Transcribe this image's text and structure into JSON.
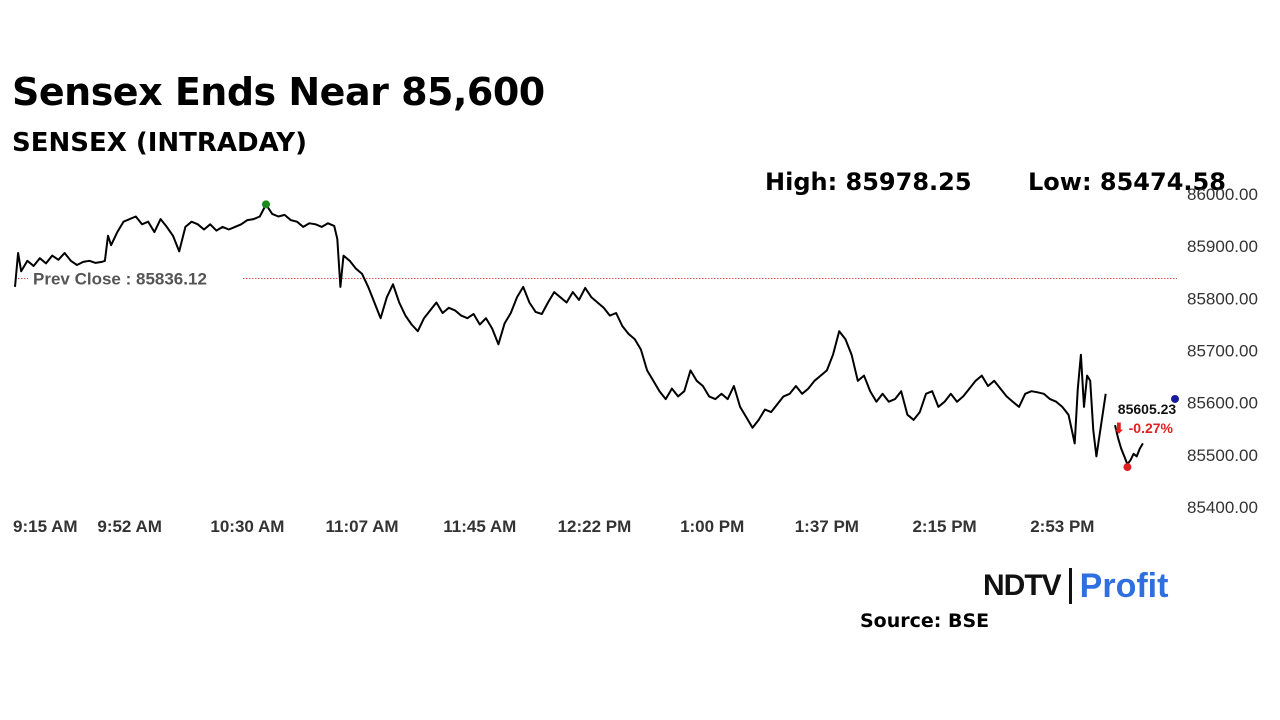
{
  "title": "Sensex Ends Near 85,600",
  "subtitle": "SENSEX (INTRADAY)",
  "high_label": "High: 85978.25",
  "low_label": "Low: 85474.58",
  "source": "Source: BSE",
  "brand": {
    "part1": "NDTV",
    "part2": "Profit"
  },
  "colors": {
    "line": "#000000",
    "prev_close_line": "#d9534f",
    "high_marker": "#1a8a1a",
    "low_marker": "#e02020",
    "last_marker": "#1a1aa0",
    "change_down": "#e02020",
    "brand_profit": "#2f6fe0"
  },
  "chart_data": {
    "type": "line",
    "title": "SENSEX (INTRADAY)",
    "xlabel": "",
    "ylabel": "",
    "ylim": [
      85400,
      86000
    ],
    "y_ticks": [
      86000,
      85900,
      85800,
      85700,
      85600,
      85500,
      85400
    ],
    "y_tick_labels": [
      "86000.00",
      "85900.00",
      "85800.00",
      "85700.00",
      "85600.00",
      "85500.00",
      "85400.00"
    ],
    "x_range": [
      "09:15",
      "15:30"
    ],
    "x_ticks": [
      "09:15",
      "09:52",
      "10:30",
      "11:07",
      "11:45",
      "12:22",
      "13:00",
      "13:37",
      "14:15",
      "14:53"
    ],
    "x_tick_labels": [
      "9:15 AM",
      "9:52 AM",
      "10:30 AM",
      "11:07 AM",
      "11:45 AM",
      "12:22 PM",
      "1:00 PM",
      "1:37 PM",
      "2:15 PM",
      "2:53 PM"
    ],
    "grid": false,
    "prev_close": 85836.12,
    "prev_close_label": "Prev Close : 85836.12",
    "high": {
      "time": "10:36",
      "value": 85978.25
    },
    "low": {
      "time": "15:14",
      "value": 85474.58
    },
    "last": {
      "time": "15:20",
      "value": 85605.23,
      "label": "85605.23",
      "change_label": "⬇ -0.27%"
    },
    "series": [
      {
        "points": [
          [
            "09:15",
            85820
          ],
          [
            "09:16",
            85885
          ],
          [
            "09:17",
            85850
          ],
          [
            "09:19",
            85870
          ],
          [
            "09:21",
            85860
          ],
          [
            "09:23",
            85875
          ],
          [
            "09:25",
            85865
          ],
          [
            "09:27",
            85880
          ],
          [
            "09:29",
            85872
          ],
          [
            "09:31",
            85885
          ],
          [
            "09:33",
            85870
          ],
          [
            "09:35",
            85862
          ],
          [
            "09:37",
            85868
          ],
          [
            "09:39",
            85870
          ],
          [
            "09:41",
            85866
          ],
          [
            "09:43",
            85868
          ],
          [
            "09:44",
            85870
          ],
          [
            "09:45",
            85918
          ],
          [
            "09:46",
            85900
          ],
          [
            "09:48",
            85925
          ],
          [
            "09:50",
            85945
          ],
          [
            "09:52",
            85950
          ],
          [
            "09:54",
            85955
          ],
          [
            "09:56",
            85940
          ],
          [
            "09:58",
            85945
          ],
          [
            "10:00",
            85925
          ],
          [
            "10:02",
            85950
          ],
          [
            "10:04",
            85935
          ],
          [
            "10:06",
            85918
          ],
          [
            "10:08",
            85888
          ],
          [
            "10:10",
            85935
          ],
          [
            "10:12",
            85945
          ],
          [
            "10:14",
            85940
          ],
          [
            "10:16",
            85930
          ],
          [
            "10:18",
            85940
          ],
          [
            "10:20",
            85928
          ],
          [
            "10:22",
            85935
          ],
          [
            "10:24",
            85930
          ],
          [
            "10:26",
            85935
          ],
          [
            "10:28",
            85940
          ],
          [
            "10:30",
            85948
          ],
          [
            "10:32",
            85950
          ],
          [
            "10:34",
            85955
          ],
          [
            "10:36",
            85978
          ],
          [
            "10:38",
            85960
          ],
          [
            "10:40",
            85955
          ],
          [
            "10:42",
            85958
          ],
          [
            "10:44",
            85948
          ],
          [
            "10:46",
            85945
          ],
          [
            "10:48",
            85935
          ],
          [
            "10:50",
            85942
          ],
          [
            "10:52",
            85940
          ],
          [
            "10:54",
            85935
          ],
          [
            "10:56",
            85942
          ],
          [
            "10:58",
            85937
          ],
          [
            "10:59",
            85912
          ],
          [
            "11:00",
            85820
          ],
          [
            "11:01",
            85880
          ],
          [
            "11:03",
            85870
          ],
          [
            "11:05",
            85855
          ],
          [
            "11:07",
            85845
          ],
          [
            "11:09",
            85820
          ],
          [
            "11:11",
            85790
          ],
          [
            "11:13",
            85760
          ],
          [
            "11:15",
            85800
          ],
          [
            "11:17",
            85825
          ],
          [
            "11:19",
            85790
          ],
          [
            "11:21",
            85765
          ],
          [
            "11:23",
            85748
          ],
          [
            "11:25",
            85735
          ],
          [
            "11:27",
            85760
          ],
          [
            "11:29",
            85775
          ],
          [
            "11:31",
            85790
          ],
          [
            "11:33",
            85770
          ],
          [
            "11:35",
            85780
          ],
          [
            "11:37",
            85775
          ],
          [
            "11:39",
            85765
          ],
          [
            "11:41",
            85760
          ],
          [
            "11:43",
            85768
          ],
          [
            "11:45",
            85748
          ],
          [
            "11:47",
            85760
          ],
          [
            "11:49",
            85740
          ],
          [
            "11:51",
            85710
          ],
          [
            "11:53",
            85750
          ],
          [
            "11:55",
            85770
          ],
          [
            "11:57",
            85800
          ],
          [
            "11:59",
            85820
          ],
          [
            "12:01",
            85790
          ],
          [
            "12:03",
            85772
          ],
          [
            "12:05",
            85768
          ],
          [
            "12:07",
            85790
          ],
          [
            "12:09",
            85810
          ],
          [
            "12:11",
            85800
          ],
          [
            "12:13",
            85790
          ],
          [
            "12:15",
            85810
          ],
          [
            "12:17",
            85795
          ],
          [
            "12:19",
            85818
          ],
          [
            "12:21",
            85800
          ],
          [
            "12:23",
            85790
          ],
          [
            "12:25",
            85780
          ],
          [
            "12:27",
            85765
          ],
          [
            "12:29",
            85770
          ],
          [
            "12:31",
            85745
          ],
          [
            "12:33",
            85730
          ],
          [
            "12:35",
            85720
          ],
          [
            "12:37",
            85700
          ],
          [
            "12:39",
            85660
          ],
          [
            "12:41",
            85640
          ],
          [
            "12:43",
            85620
          ],
          [
            "12:45",
            85605
          ],
          [
            "12:47",
            85625
          ],
          [
            "12:49",
            85610
          ],
          [
            "12:51",
            85620
          ],
          [
            "12:53",
            85660
          ],
          [
            "12:55",
            85640
          ],
          [
            "12:57",
            85630
          ],
          [
            "12:59",
            85610
          ],
          [
            "13:01",
            85605
          ],
          [
            "13:03",
            85615
          ],
          [
            "13:05",
            85605
          ],
          [
            "13:07",
            85630
          ],
          [
            "13:09",
            85590
          ],
          [
            "13:11",
            85570
          ],
          [
            "13:13",
            85550
          ],
          [
            "13:15",
            85565
          ],
          [
            "13:17",
            85585
          ],
          [
            "13:19",
            85580
          ],
          [
            "13:21",
            85595
          ],
          [
            "13:23",
            85610
          ],
          [
            "13:25",
            85615
          ],
          [
            "13:27",
            85630
          ],
          [
            "13:29",
            85615
          ],
          [
            "13:31",
            85625
          ],
          [
            "13:33",
            85640
          ],
          [
            "13:35",
            85650
          ],
          [
            "13:37",
            85660
          ],
          [
            "13:39",
            85690
          ],
          [
            "13:41",
            85735
          ],
          [
            "13:43",
            85720
          ],
          [
            "13:45",
            85690
          ],
          [
            "13:47",
            85640
          ],
          [
            "13:49",
            85650
          ],
          [
            "13:51",
            85620
          ],
          [
            "13:53",
            85600
          ],
          [
            "13:55",
            85615
          ],
          [
            "13:57",
            85600
          ],
          [
            "13:59",
            85605
          ],
          [
            "14:01",
            85620
          ],
          [
            "14:03",
            85575
          ],
          [
            "14:05",
            85565
          ],
          [
            "14:07",
            85580
          ],
          [
            "14:09",
            85615
          ],
          [
            "14:11",
            85620
          ],
          [
            "14:13",
            85590
          ],
          [
            "14:15",
            85600
          ],
          [
            "14:17",
            85615
          ],
          [
            "14:19",
            85600
          ],
          [
            "14:21",
            85610
          ],
          [
            "14:23",
            85625
          ],
          [
            "14:25",
            85640
          ],
          [
            "14:27",
            85650
          ],
          [
            "14:29",
            85630
          ],
          [
            "14:31",
            85640
          ],
          [
            "14:33",
            85625
          ],
          [
            "14:35",
            85610
          ],
          [
            "14:37",
            85600
          ],
          [
            "14:39",
            85590
          ],
          [
            "14:41",
            85615
          ],
          [
            "14:43",
            85620
          ],
          [
            "14:45",
            85618
          ],
          [
            "14:47",
            85615
          ],
          [
            "14:49",
            85605
          ],
          [
            "14:51",
            85600
          ],
          [
            "14:53",
            85590
          ],
          [
            "14:55",
            85575
          ],
          [
            "14:57",
            85520
          ],
          [
            "14:58",
            85625
          ],
          [
            "14:59",
            85690
          ],
          [
            "15:00",
            85590
          ],
          [
            "15:01",
            85650
          ],
          [
            "15:02",
            85640
          ],
          [
            "15:03",
            85545
          ],
          [
            "15:04",
            85495
          ],
          [
            "15:06",
            85575
          ],
          [
            "15:07",
            85615
          ]
        ]
      },
      {
        "points": [
          [
            "15:10",
            85555
          ],
          [
            "15:11",
            85530
          ],
          [
            "15:12",
            85510
          ],
          [
            "15:13",
            85495
          ],
          [
            "15:14",
            85480
          ],
          [
            "15:15",
            85488
          ],
          [
            "15:16",
            85500
          ],
          [
            "15:17",
            85495
          ],
          [
            "15:18",
            85510
          ],
          [
            "15:19",
            85520
          ]
        ]
      }
    ]
  }
}
